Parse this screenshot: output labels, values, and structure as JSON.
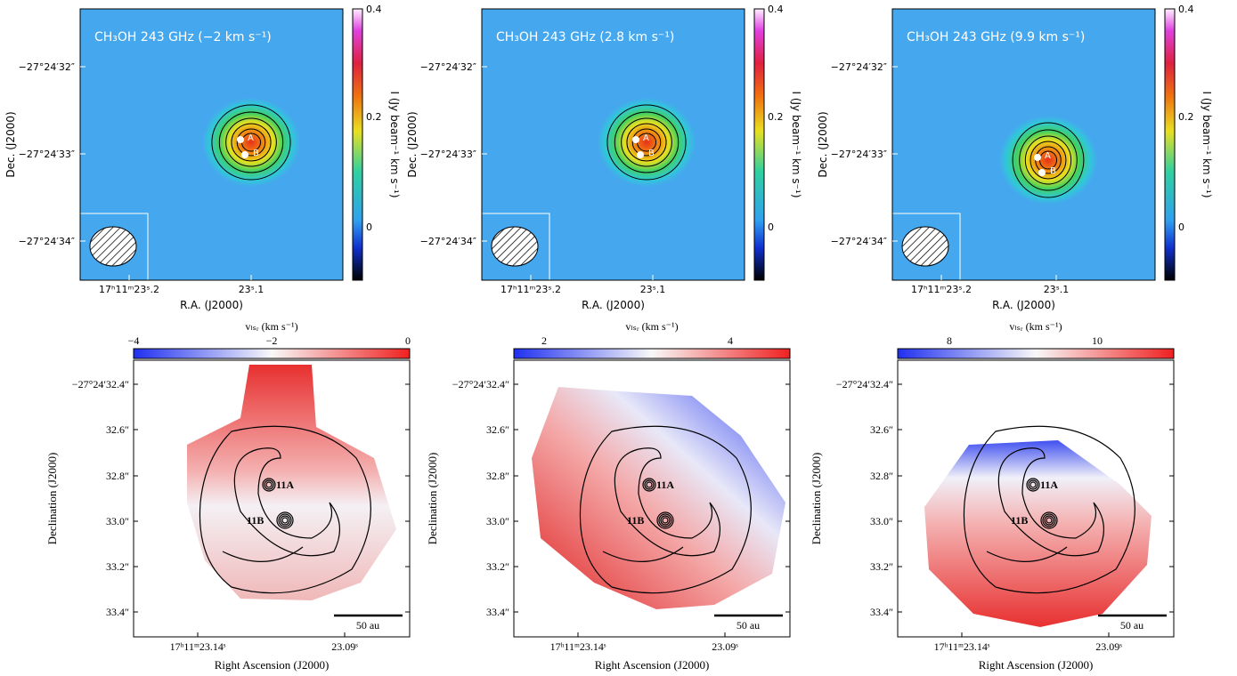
{
  "top_panels": [
    {
      "title": "CH₃OH 243 GHz (−2 km s⁻¹)",
      "y_label": "Dec. (J2000)",
      "x_label": "R.A. (J2000)",
      "colorbar_label": "I (Jy beam⁻¹ km s⁻¹)",
      "y_ticks": [
        "−27°24′32″",
        "−27°24′33″",
        "−27°24′34″"
      ],
      "x_ticks": [
        "17ʰ11ᵐ23ˢ.2",
        "23ˢ.1"
      ],
      "colorbar_ticks": [
        "0.4",
        "0.2",
        "0"
      ],
      "sources": [
        "A",
        "B"
      ]
    },
    {
      "title": "CH₃OH 243 GHz (2.8 km s⁻¹)",
      "y_label": "Dec. (J2000)",
      "x_label": "R.A. (J2000)",
      "colorbar_label": "I (Jy beam⁻¹ km s⁻¹)",
      "y_ticks": [
        "−27°24′32″",
        "−27°24′33″",
        "−27°24′34″"
      ],
      "x_ticks": [
        "17ʰ11ᵐ23ˢ.2",
        "23ˢ.1"
      ],
      "colorbar_ticks": [
        "0.4",
        "0.2",
        "0"
      ],
      "sources": [
        "A",
        "B"
      ]
    },
    {
      "title": "CH₃OH 243 GHz (9.9 km s⁻¹)",
      "y_label": "Dec. (J2000)",
      "x_label": "R.A. (J2000)",
      "colorbar_label": "I (Jy beam⁻¹ km s⁻¹)",
      "y_ticks": [
        "−27°24′32″",
        "−27°24′33″",
        "−27°24′34″"
      ],
      "x_ticks": [
        "17ʰ11ᵐ23ˢ.2",
        "23ˢ.1"
      ],
      "colorbar_ticks": [
        "0.4",
        "0.2",
        "0"
      ],
      "sources": [
        "A",
        "B"
      ]
    }
  ],
  "bottom_panels": [
    {
      "colorbar_label": "vₗₛᵣ (km s⁻¹)",
      "colorbar_ticks": [
        "−4",
        "−2",
        "0"
      ],
      "y_label": "Declination (J2000)",
      "x_label": "Right Ascension (J2000)",
      "y_ticks": [
        "−27°24′32.4″",
        "32.6″",
        "32.8″",
        "33.0″",
        "33.2″",
        "33.4″"
      ],
      "x_ticks": [
        "17ʰ11ᵐ23.14ˢ",
        "23.09ˢ"
      ],
      "sources": [
        "11A",
        "11B"
      ],
      "scale_bar": "50 au"
    },
    {
      "colorbar_label": "vₗₛᵣ (km s⁻¹)",
      "colorbar_ticks": [
        "2",
        "4"
      ],
      "y_label": "Declination (J2000)",
      "x_label": "Right Ascension (J2000)",
      "y_ticks": [
        "−27°24′32.4″",
        "32.6″",
        "32.8″",
        "33.0″",
        "33.2″",
        "33.4″"
      ],
      "x_ticks": [
        "17ʰ11ᵐ23.14ˢ",
        "23.09ˢ"
      ],
      "sources": [
        "11A",
        "11B"
      ],
      "scale_bar": "50 au"
    },
    {
      "colorbar_label": "vₗₛᵣ (km s⁻¹)",
      "colorbar_ticks": [
        "8",
        "10"
      ],
      "y_label": "Declination (J2000)",
      "x_label": "Right Ascension (J2000)",
      "y_ticks": [
        "−27°24′32.4″",
        "32.6″",
        "32.8″",
        "33.0″",
        "33.2″",
        "33.4″"
      ],
      "x_ticks": [
        "17ʰ11ᵐ23.14ˢ",
        "23.09ˢ"
      ],
      "sources": [
        "11A",
        "11B"
      ],
      "scale_bar": "50 au"
    }
  ]
}
